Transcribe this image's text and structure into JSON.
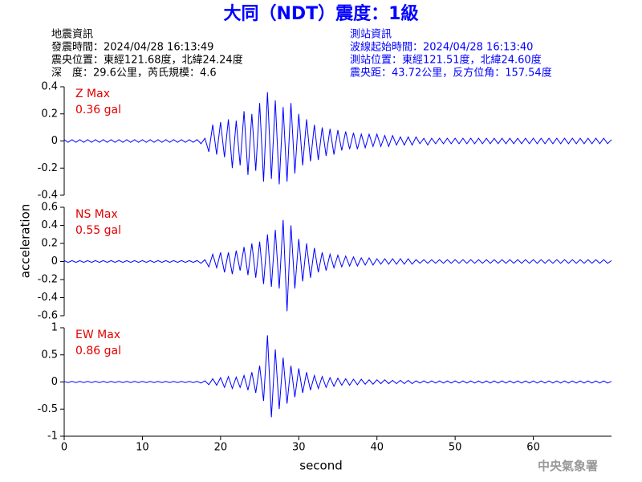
{
  "title": "大同（NDT）震度：1級",
  "earthquake_info": [
    "地震資訊",
    "發震時間：2024/04/28 16:13:49",
    "震央位置：東經121.68度，北緯24.24度",
    "深　度：29.6公里，芮氏規模：4.6"
  ],
  "station_info": [
    "測站資訊",
    "波線起始時間：2024/04/28 16:13:40",
    "測站位置：東經121.51度，北緯24.60度",
    "震央距：43.72公里，反方位角：157.54度"
  ],
  "footer": "中央氣象署",
  "chart_data": {
    "type": "line",
    "xlabel": "second",
    "ylabel": "acceleration",
    "xlim": [
      0,
      70
    ],
    "xticks": [
      0,
      10,
      20,
      30,
      40,
      50,
      60
    ],
    "x": [
      0,
      0.5,
      1,
      1.5,
      2,
      2.5,
      3,
      3.5,
      4,
      4.5,
      5,
      5.5,
      6,
      6.5,
      7,
      7.5,
      8,
      8.5,
      9,
      9.5,
      10,
      10.5,
      11,
      11.5,
      12,
      12.5,
      13,
      13.5,
      14,
      14.5,
      15,
      15.5,
      16,
      16.5,
      17,
      17.5,
      18,
      18.5,
      19,
      19.5,
      20,
      20.5,
      21,
      21.5,
      22,
      22.5,
      23,
      23.5,
      24,
      24.5,
      25,
      25.5,
      26,
      26.5,
      27,
      27.5,
      28,
      28.5,
      29,
      29.5,
      30,
      30.5,
      31,
      31.5,
      32,
      32.5,
      33,
      33.5,
      34,
      34.5,
      35,
      35.5,
      36,
      36.5,
      37,
      37.5,
      38,
      38.5,
      39,
      39.5,
      40,
      40.5,
      41,
      41.5,
      42,
      42.5,
      43,
      43.5,
      44,
      44.5,
      45,
      45.5,
      46,
      46.5,
      47,
      47.5,
      48,
      48.5,
      49,
      49.5,
      50,
      50.5,
      51,
      51.5,
      52,
      52.5,
      53,
      53.5,
      54,
      54.5,
      55,
      55.5,
      56,
      56.5,
      57,
      57.5,
      58,
      58.5,
      59,
      59.5,
      60,
      60.5,
      61,
      61.5,
      62,
      62.5,
      63,
      63.5,
      64,
      64.5,
      65,
      65.5,
      66,
      66.5,
      67,
      67.5,
      68,
      68.5,
      69,
      69.5,
      70
    ],
    "panels": [
      {
        "annotations": [
          "Z Max",
          "0.36 gal"
        ],
        "ylim": [
          -0.4,
          0.4
        ],
        "yticks": [
          -0.4,
          -0.2,
          0,
          0.2,
          0.4
        ],
        "series": [
          {
            "color": "#0000ff",
            "values": [
              0.01,
              -0.01,
              0.01,
              -0.01,
              0.01,
              -0.01,
              0.01,
              -0.01,
              0.01,
              -0.01,
              0.01,
              -0.01,
              0.01,
              -0.01,
              0.01,
              -0.01,
              0.01,
              -0.01,
              0.01,
              -0.01,
              0.01,
              -0.01,
              0.01,
              -0.01,
              0.01,
              -0.01,
              0.01,
              -0.01,
              0.01,
              -0.01,
              0.01,
              -0.01,
              0.01,
              -0.01,
              0.01,
              -0.02,
              0.02,
              -0.08,
              0.12,
              -0.1,
              0.14,
              -0.12,
              0.16,
              -0.2,
              0.15,
              -0.18,
              0.22,
              -0.25,
              0.2,
              -0.22,
              0.28,
              -0.3,
              0.36,
              -0.28,
              0.3,
              -0.32,
              0.25,
              -0.3,
              0.28,
              -0.24,
              0.2,
              -0.18,
              0.16,
              -0.15,
              0.12,
              -0.14,
              0.1,
              -0.11,
              0.09,
              -0.1,
              0.08,
              -0.07,
              0.07,
              -0.06,
              0.06,
              -0.06,
              0.05,
              -0.05,
              0.05,
              -0.04,
              0.05,
              -0.04,
              0.04,
              -0.04,
              0.04,
              -0.03,
              0.03,
              -0.03,
              0.03,
              -0.03,
              0.03,
              -0.02,
              0.02,
              -0.03,
              0.02,
              -0.02,
              0.02,
              -0.02,
              0.02,
              -0.02,
              0.02,
              -0.02,
              0.02,
              -0.02,
              0.02,
              -0.02,
              0.02,
              -0.02,
              0.02,
              -0.02,
              0.02,
              -0.02,
              0.02,
              -0.02,
              0.02,
              -0.02,
              0.02,
              -0.02,
              0.02,
              -0.02,
              0.02,
              -0.02,
              0.02,
              -0.02,
              0.02,
              -0.02,
              0.02,
              -0.02,
              0.02,
              -0.02,
              0.02,
              -0.02,
              0.02,
              -0.02,
              0.02,
              -0.02,
              0.02,
              -0.02,
              0.02,
              -0.02,
              0.01
            ]
          }
        ]
      },
      {
        "annotations": [
          "NS Max",
          "0.55 gal"
        ],
        "ylim": [
          -0.6,
          0.6
        ],
        "yticks": [
          -0.6,
          -0.4,
          -0.2,
          0,
          0.2,
          0.4,
          0.6
        ],
        "series": [
          {
            "color": "#0000ff",
            "values": [
              0.01,
              -0.01,
              0.01,
              -0.01,
              0.01,
              -0.01,
              0.01,
              -0.01,
              0.01,
              -0.01,
              0.01,
              -0.01,
              0.01,
              -0.01,
              0.01,
              -0.01,
              0.01,
              -0.01,
              0.01,
              -0.01,
              0.01,
              -0.01,
              0.01,
              -0.01,
              0.01,
              -0.01,
              0.01,
              -0.01,
              0.01,
              -0.01,
              0.01,
              -0.01,
              0.01,
              -0.01,
              0.01,
              -0.02,
              0.02,
              -0.06,
              0.08,
              -0.07,
              0.1,
              -0.12,
              0.1,
              -0.14,
              0.12,
              -0.1,
              0.16,
              -0.15,
              0.2,
              -0.18,
              0.22,
              -0.25,
              0.3,
              -0.28,
              0.35,
              -0.3,
              0.46,
              -0.55,
              0.4,
              -0.3,
              0.25,
              -0.22,
              0.2,
              -0.18,
              0.15,
              -0.12,
              0.1,
              -0.1,
              0.08,
              -0.07,
              0.07,
              -0.06,
              0.06,
              -0.05,
              0.05,
              -0.05,
              0.04,
              -0.04,
              0.04,
              -0.04,
              0.03,
              -0.03,
              0.03,
              -0.03,
              0.03,
              -0.03,
              0.03,
              -0.03,
              0.03,
              -0.03,
              0.02,
              -0.02,
              0.02,
              -0.02,
              0.02,
              -0.02,
              0.02,
              -0.02,
              0.02,
              -0.02,
              0.02,
              -0.02,
              0.02,
              -0.02,
              0.02,
              -0.02,
              0.02,
              -0.02,
              0.02,
              -0.02,
              0.02,
              -0.02,
              0.02,
              -0.02,
              0.02,
              -0.02,
              0.02,
              -0.02,
              0.02,
              -0.02,
              0.02,
              -0.02,
              0.02,
              -0.02,
              0.02,
              -0.02,
              0.02,
              -0.02,
              0.02,
              -0.02,
              0.02,
              -0.02,
              0.02,
              -0.02,
              0.02,
              -0.02,
              0.02,
              -0.02,
              0.02,
              -0.02,
              0.01
            ]
          }
        ]
      },
      {
        "annotations": [
          "EW Max",
          "0.86 gal"
        ],
        "ylim": [
          -1,
          1
        ],
        "yticks": [
          -1,
          -0.5,
          0,
          0.5,
          1
        ],
        "series": [
          {
            "color": "#0000ff",
            "values": [
              0.01,
              -0.01,
              0.01,
              -0.01,
              0.01,
              -0.01,
              0.01,
              -0.01,
              0.01,
              -0.01,
              0.01,
              -0.01,
              0.01,
              -0.01,
              0.01,
              -0.01,
              0.01,
              -0.01,
              0.01,
              -0.01,
              0.01,
              -0.01,
              0.01,
              -0.01,
              0.01,
              -0.01,
              0.01,
              -0.01,
              0.01,
              -0.01,
              0.01,
              -0.01,
              0.01,
              -0.01,
              0.01,
              -0.02,
              0.02,
              -0.05,
              0.06,
              -0.06,
              0.08,
              -0.1,
              0.1,
              -0.12,
              0.09,
              -0.1,
              0.12,
              -0.15,
              0.18,
              -0.2,
              0.3,
              -0.35,
              0.86,
              -0.65,
              0.6,
              -0.5,
              0.45,
              -0.4,
              0.3,
              -0.28,
              0.25,
              -0.2,
              0.18,
              -0.15,
              0.12,
              -0.12,
              0.1,
              -0.1,
              0.08,
              -0.08,
              0.07,
              -0.06,
              0.06,
              -0.06,
              0.05,
              -0.05,
              0.05,
              -0.04,
              0.04,
              -0.04,
              0.04,
              -0.03,
              0.04,
              -0.03,
              0.03,
              -0.03,
              0.03,
              -0.03,
              0.03,
              -0.03,
              0.02,
              -0.02,
              0.02,
              -0.02,
              0.02,
              -0.02,
              0.02,
              -0.02,
              0.02,
              -0.02,
              0.02,
              -0.02,
              0.02,
              -0.02,
              0.02,
              -0.02,
              0.02,
              -0.02,
              0.02,
              -0.02,
              0.02,
              -0.02,
              0.02,
              -0.02,
              0.02,
              -0.02,
              0.02,
              -0.02,
              0.02,
              -0.02,
              0.02,
              -0.02,
              0.02,
              -0.02,
              0.02,
              -0.02,
              0.02,
              -0.02,
              0.02,
              -0.02,
              0.02,
              -0.02,
              0.02,
              -0.02,
              0.02,
              -0.02,
              0.02,
              -0.02,
              0.02,
              -0.02,
              0.01
            ]
          }
        ]
      }
    ]
  }
}
